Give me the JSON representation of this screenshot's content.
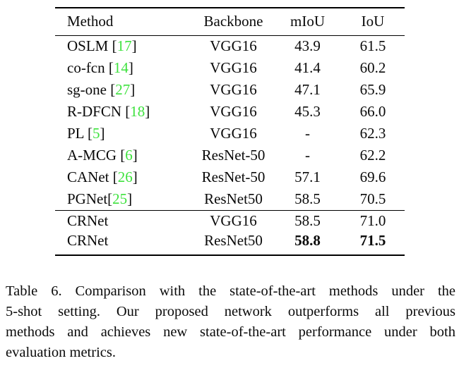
{
  "colors": {
    "citation_green": "#3ee23e",
    "text": "#0a0a0a",
    "background": "#ffffff"
  },
  "table": {
    "headers": [
      "Method",
      "Backbone",
      "mIoU",
      "IoU"
    ],
    "cite_open": "[",
    "cite_close": "]",
    "groups": [
      {
        "rows": [
          {
            "method": "OSLM ",
            "cite": "17",
            "backbone": "VGG16",
            "miou": "43.9",
            "iou": "61.5",
            "bold": false
          },
          {
            "method": "co-fcn ",
            "cite": "14",
            "backbone": "VGG16",
            "miou": "41.4",
            "iou": "60.2",
            "bold": false
          },
          {
            "method": "sg-one ",
            "cite": "27",
            "backbone": "VGG16",
            "miou": "47.1",
            "iou": "65.9",
            "bold": false
          },
          {
            "method": "R-DFCN ",
            "cite": "18",
            "backbone": "VGG16",
            "miou": "45.3",
            "iou": "66.0",
            "bold": false
          },
          {
            "method": "PL ",
            "cite": "5",
            "backbone": "VGG16",
            "miou": "-",
            "iou": "62.3",
            "bold": false
          },
          {
            "method": "A-MCG ",
            "cite": "6",
            "backbone": "ResNet-50",
            "miou": "-",
            "iou": "62.2",
            "bold": false
          },
          {
            "method": "CANet ",
            "cite": "26",
            "backbone": "ResNet-50",
            "miou": "57.1",
            "iou": "69.6",
            "bold": false
          },
          {
            "method": "PGNet",
            "cite": "25",
            "backbone": "ResNet50",
            "miou": "58.5",
            "iou": "70.5",
            "bold": false
          }
        ]
      },
      {
        "rows": [
          {
            "method": "CRNet",
            "cite": null,
            "backbone": "VGG16",
            "miou": "58.5",
            "iou": "71.0",
            "bold": false
          },
          {
            "method": "CRNet",
            "cite": null,
            "backbone": "ResNet50",
            "miou": "58.8",
            "iou": "71.5",
            "bold": true
          }
        ]
      }
    ]
  },
  "caption": {
    "lines": [
      "Table 6. Comparison with the state-of-the-art methods under the",
      "5-shot setting. Our proposed network outperforms all previous",
      "methods and achieves new state-of-the-art performance under both",
      "evaluation metrics."
    ]
  }
}
